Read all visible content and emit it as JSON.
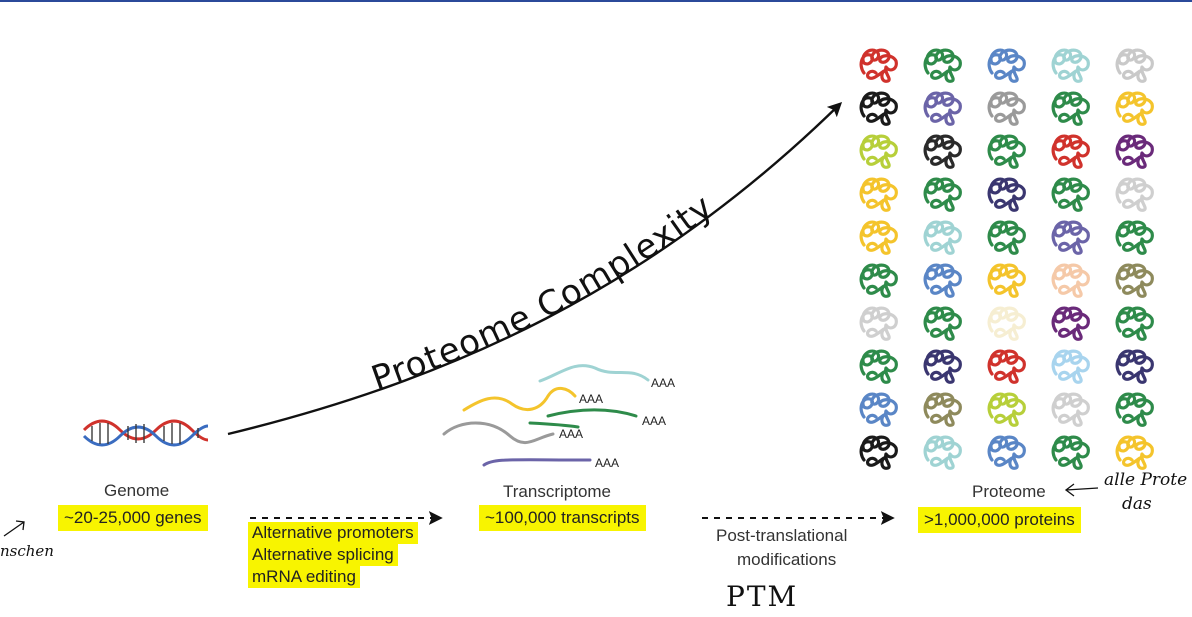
{
  "title": "Proteome Complexity",
  "genome": {
    "label": "Genome",
    "count": "~20-25,000 genes"
  },
  "transcriptome": {
    "label": "Transcriptome",
    "count": "~100,000 transcripts",
    "tail": "AAA"
  },
  "proteome": {
    "label": "Proteome",
    "count": ">1,000,000 proteins"
  },
  "step1": {
    "lines": [
      "Alternative promoters",
      "Alternative splicing",
      "mRNA editing"
    ]
  },
  "step2": {
    "lines": [
      "Post-translational",
      "modifications"
    ]
  },
  "handwriting": {
    "ptm": "PTM",
    "left_note": "nschen",
    "right_note_1": "alle Prote",
    "right_note_2": "das"
  },
  "colors": {
    "highlight": "#f8f400",
    "arrow": "#111111",
    "protein_grid": [
      [
        "#d0322c",
        "#2e8b4a",
        "#5a86c6",
        "#9fd3d3",
        "#c9c9c9"
      ],
      [
        "#1a1a1a",
        "#6b64a8",
        "#9a9a9a",
        "#2e8b4a",
        "#f4c42c"
      ],
      [
        "#b7cf3a",
        "#2a2a2a",
        "#2e8b4a",
        "#d0322c",
        "#6a2a7a"
      ],
      [
        "#f4c42c",
        "#2e8b4a",
        "#3a3670",
        "#2e8b4a",
        "#cfcfcf"
      ],
      [
        "#f4c42c",
        "#9fd3d3",
        "#2e8b4a",
        "#6b64a8",
        "#2e8b4a"
      ],
      [
        "#2e8b4a",
        "#5a86c6",
        "#f4c42c",
        "#f5c9a8",
        "#8e8a5c"
      ],
      [
        "#cfcfcf",
        "#2e8b4a",
        "#f6eed2",
        "#6a2a7a",
        "#2e8b4a"
      ],
      [
        "#2e8b4a",
        "#3a3670",
        "#d0322c",
        "#a8d4ee",
        "#3a3670"
      ],
      [
        "#5a86c6",
        "#8e8a5c",
        "#b7cf3a",
        "#cfcfcf",
        "#2e8b4a"
      ],
      [
        "#1a1a1a",
        "#9fd3d3",
        "#5a86c6",
        "#2e8b4a",
        "#f4c42c"
      ]
    ],
    "transcripts": [
      "#9fd3d3",
      "#f4c42c",
      "#2e8b4a",
      "#9a9a9a",
      "#6b64a8"
    ]
  }
}
